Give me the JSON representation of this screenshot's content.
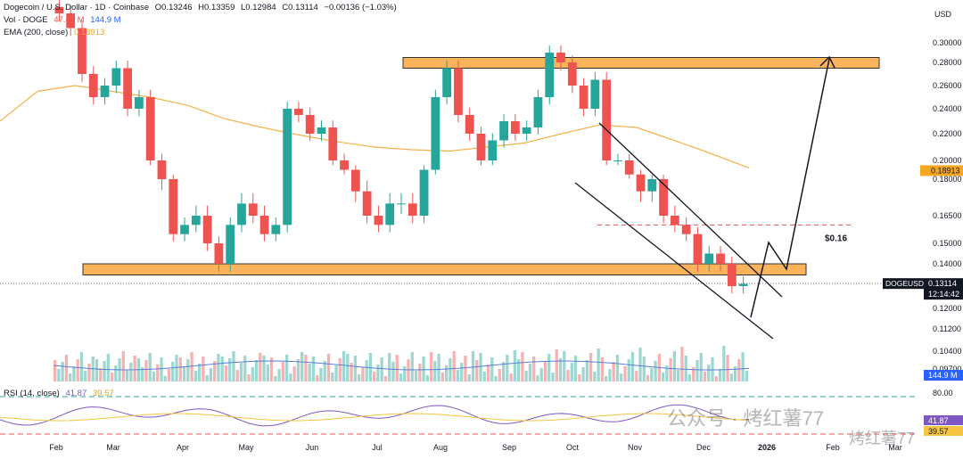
{
  "header": {
    "title": "Dogecoin / U.S. Dollar · 1D · Coinbase",
    "open": "O0.13246",
    "high": "H0.13359",
    "low": "L0.12984",
    "close": "C0.13114",
    "change": "−0.00136 (−1.03%)",
    "volume_label": "Vol · DOGE",
    "volume_value_1": "47.47 M",
    "volume_value_2": "144.9 M",
    "ema_label": "EMA (200, close)",
    "ema_value": "0.18913",
    "rsi_label": "RSI (14, close)",
    "rsi_value_1": "41.87",
    "rsi_value_2": "39.57"
  },
  "axis": {
    "currency": "USD",
    "y_ticks": [
      "0.30000",
      "0.28000",
      "0.26000",
      "0.24000",
      "0.22000",
      "0.20000",
      "0.18000",
      "0.16500",
      "0.15000",
      "0.14000",
      "0.12000",
      "0.11200",
      "0.10400",
      "0.09700"
    ],
    "x_ticks": [
      "Feb",
      "Mar",
      "Apr",
      "May",
      "Jun",
      "Jul",
      "Aug",
      "Sep",
      "Oct",
      "Nov",
      "Dec",
      "2026",
      "Feb",
      "Mar"
    ],
    "rsi_top": "80.00",
    "ema_badge": "0.18913",
    "price_badge_label": "DOGEUSD",
    "price_badge_value": "0.13114",
    "price_badge_time": "12:14:42",
    "volume_badge": "144.9 M",
    "rsi_badge_1": "41.87",
    "rsi_badge_2": "39.57"
  },
  "annotation": {
    "target_label": "$0.16"
  },
  "watermark": {
    "text1": "公众号 · 烤红薯77",
    "text2": "烤红薯77"
  },
  "colors": {
    "up": "#26a69a",
    "down": "#ef5350",
    "ema": "#f5b14c",
    "zone_fill": "#f9b35a",
    "rsi": "#7e57c2",
    "rsi_ma": "#f5c542",
    "badge_dark": "#131722"
  },
  "chart_data": {
    "type": "candlestick",
    "price_closes_approx": [
      0.33,
      0.315,
      0.27,
      0.25,
      0.26,
      0.275,
      0.24,
      0.25,
      0.2,
      0.18,
      0.155,
      0.16,
      0.165,
      0.15,
      0.14,
      0.16,
      0.17,
      0.165,
      0.155,
      0.16,
      0.24,
      0.235,
      0.22,
      0.225,
      0.2,
      0.19,
      0.175,
      0.165,
      0.16,
      0.17,
      0.17,
      0.165,
      0.19,
      0.25,
      0.275,
      0.235,
      0.22,
      0.2,
      0.215,
      0.23,
      0.22,
      0.225,
      0.25,
      0.29,
      0.28,
      0.26,
      0.24,
      0.265,
      0.2,
      0.2,
      0.185,
      0.175,
      0.18,
      0.165,
      0.16,
      0.155,
      0.14,
      0.145,
      0.14,
      0.13,
      0.131
    ],
    "ema200_approx": [
      0.23,
      0.255,
      0.26,
      0.255,
      0.25,
      0.243,
      0.232,
      0.225,
      0.219,
      0.214,
      0.21,
      0.208,
      0.207,
      0.21,
      0.213,
      0.22,
      0.227,
      0.225,
      0.215,
      0.205,
      0.192
    ],
    "support_zone": [
      0.135,
      0.14
    ],
    "resistance_zone": [
      0.275,
      0.285
    ],
    "target_level": 0.16
  }
}
